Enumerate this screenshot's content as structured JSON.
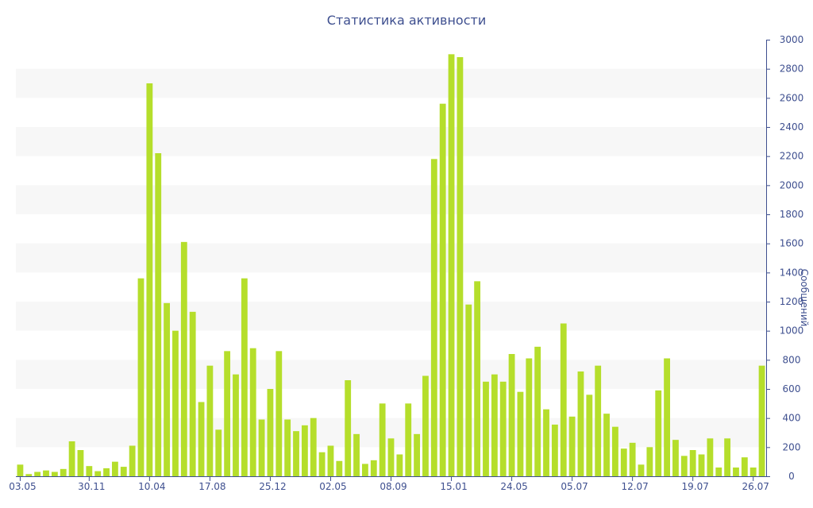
{
  "chart_data": {
    "type": "bar",
    "title": "Статистика активности",
    "xlabel": "",
    "ylabel": "Сообщений",
    "ylim": [
      0,
      3000
    ],
    "y_ticks": [
      0,
      200,
      400,
      600,
      800,
      1000,
      1200,
      1400,
      1600,
      1800,
      2000,
      2200,
      2400,
      2600,
      2800,
      3000
    ],
    "x_tick_labels": [
      "03.05",
      "30.11",
      "10.04",
      "17.08",
      "25.12",
      "02.05",
      "08.09",
      "15.01",
      "24.05",
      "05.07",
      "12.07",
      "19.07",
      "26.07"
    ],
    "x_tick_positions": [
      0,
      8,
      15,
      22,
      29,
      36,
      43,
      50,
      57,
      64,
      71,
      78,
      85
    ],
    "grid": "horizontal bands",
    "legend": "none",
    "colors": {
      "bar": "#b5de2b",
      "band": "#f7f7f7",
      "axis": "#3e4f8f",
      "text": "#3e4f8f"
    },
    "values": [
      80,
      15,
      30,
      40,
      30,
      50,
      240,
      180,
      70,
      35,
      55,
      100,
      65,
      210,
      1360,
      2700,
      2220,
      1190,
      1000,
      1610,
      1130,
      510,
      760,
      320,
      860,
      700,
      1360,
      880,
      390,
      600,
      860,
      390,
      310,
      350,
      400,
      165,
      210,
      105,
      660,
      290,
      85,
      110,
      500,
      260,
      150,
      500,
      290,
      690,
      2180,
      2560,
      2900,
      2880,
      1180,
      1340,
      650,
      700,
      650,
      840,
      580,
      810,
      890,
      460,
      355,
      1050,
      410,
      720,
      560,
      760,
      430,
      340,
      190,
      230,
      80,
      200,
      590,
      810,
      250,
      140,
      180,
      150,
      260,
      60,
      260,
      60,
      130,
      60,
      760
    ]
  }
}
